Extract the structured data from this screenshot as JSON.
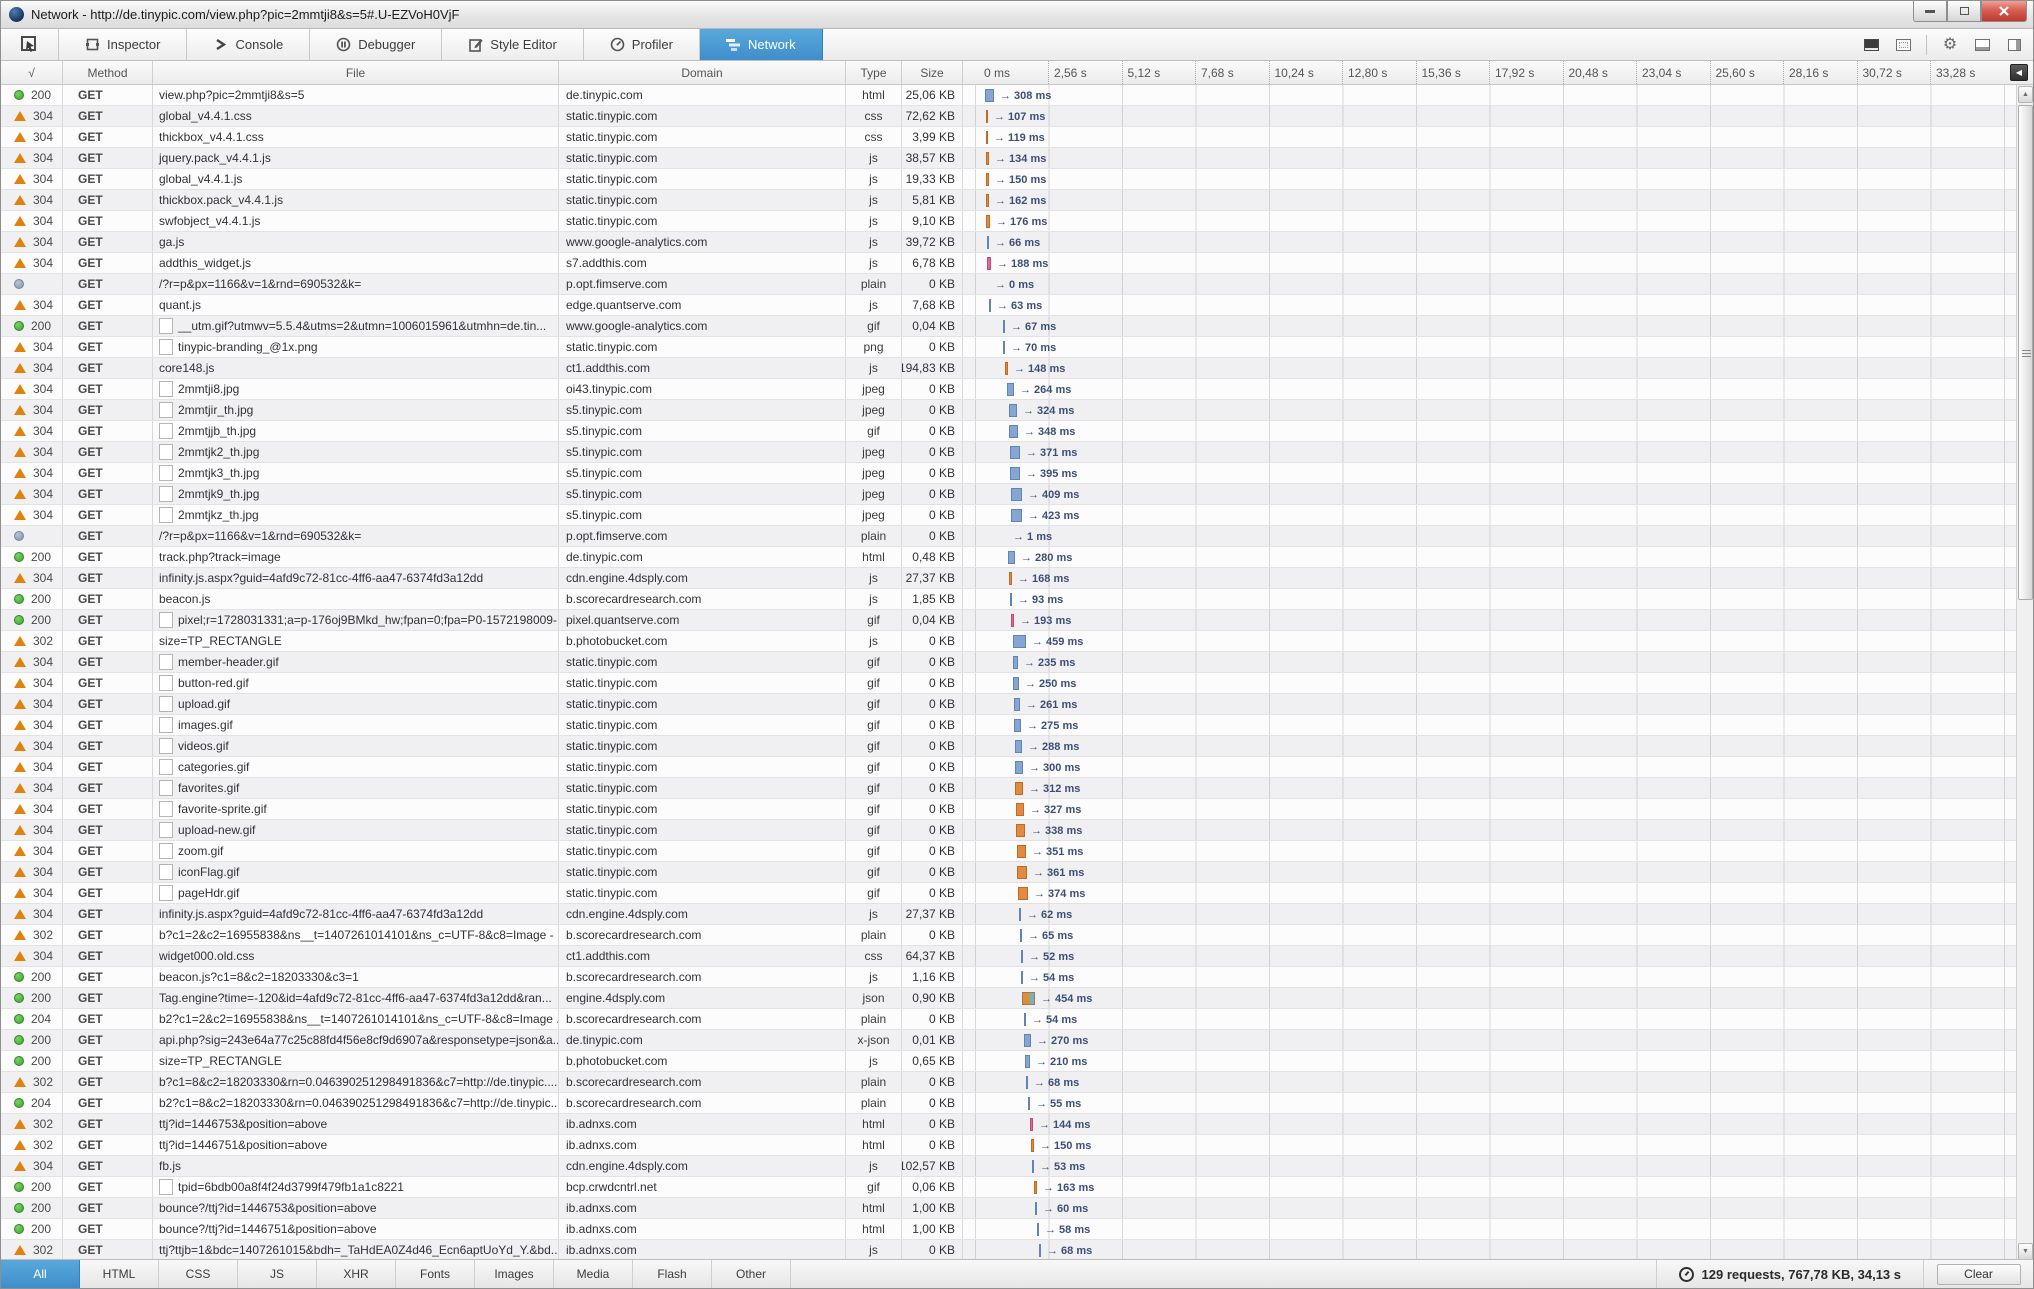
{
  "window": {
    "title": "Network - http://de.tinypic.com/view.php?pic=2mmtji8&s=5#.U-EZVoH0VjF",
    "controls": {
      "minimize": "–",
      "maximize": "",
      "close": "x"
    }
  },
  "toolbar": {
    "tabs": [
      {
        "label": "Inspector",
        "icon": "inspector-icon",
        "active": false
      },
      {
        "label": "Console",
        "icon": "console-icon",
        "active": false
      },
      {
        "label": "Debugger",
        "icon": "debugger-icon",
        "active": false
      },
      {
        "label": "Style Editor",
        "icon": "style-editor-icon",
        "active": false
      },
      {
        "label": "Profiler",
        "icon": "profiler-icon",
        "active": false
      },
      {
        "label": "Network",
        "icon": "network-icon",
        "active": true
      }
    ],
    "accent_color": "#459fd6"
  },
  "table": {
    "columns": [
      "√",
      "Method",
      "File",
      "Domain",
      "Type",
      "Size"
    ],
    "timeline_ticks": [
      "0 ms",
      "2,56 s",
      "5,12 s",
      "7,68 s",
      "10,24 s",
      "12,80 s",
      "15,36 s",
      "17,92 s",
      "20,48 s",
      "23,04 s",
      "25,60 s",
      "28,16 s",
      "30,72 s",
      "33,28 s"
    ],
    "tick_spacing_px": 73.5,
    "row_fields": [
      "status",
      "status_icon",
      "has_thumbnail",
      "file",
      "domain",
      "type",
      "size",
      "time_label",
      "bar_offset_px",
      "bar_width_px",
      "bar_color"
    ],
    "rows": [
      [
        "200",
        "green",
        false,
        "view.php?pic=2mmtji8&s=5",
        "de.tinypic.com",
        "html",
        "25,06 KB",
        "→ 308 ms",
        22,
        9,
        "blue"
      ],
      [
        "304",
        "orange",
        false,
        "global_v4.4.1.css",
        "static.tinypic.com",
        "css",
        "72,62 KB",
        "→ 107 ms",
        23,
        2,
        "orange"
      ],
      [
        "304",
        "orange",
        false,
        "thickbox_v4.4.1.css",
        "static.tinypic.com",
        "css",
        "3,99 KB",
        "→ 119 ms",
        23,
        2,
        "orange"
      ],
      [
        "304",
        "orange",
        false,
        "jquery.pack_v4.4.1.js",
        "static.tinypic.com",
        "js",
        "38,57 KB",
        "→ 134 ms",
        23,
        3,
        "orange"
      ],
      [
        "304",
        "orange",
        false,
        "global_v4.4.1.js",
        "static.tinypic.com",
        "js",
        "19,33 KB",
        "→ 150 ms",
        23,
        3,
        "orange"
      ],
      [
        "304",
        "orange",
        false,
        "thickbox.pack_v4.4.1.js",
        "static.tinypic.com",
        "js",
        "5,81 KB",
        "→ 162 ms",
        23,
        3,
        "orange"
      ],
      [
        "304",
        "orange",
        false,
        "swfobject_v4.4.1.js",
        "static.tinypic.com",
        "js",
        "9,10 KB",
        "→ 176 ms",
        23,
        4,
        "orange"
      ],
      [
        "304",
        "orange",
        false,
        "ga.js",
        "www.google-analytics.com",
        "js",
        "39,72 KB",
        "→ 66 ms",
        24,
        2,
        "blue"
      ],
      [
        "304",
        "orange",
        false,
        "addthis_widget.js",
        "s7.addthis.com",
        "js",
        "6,78 KB",
        "→ 188 ms",
        24,
        4,
        "pink"
      ],
      [
        "",
        "gray",
        false,
        "/?r=p&px=1166&v=1&rnd=690532&k=",
        "p.opt.fimserve.com",
        "plain",
        "0 KB",
        "→ 0 ms",
        26,
        0,
        "none"
      ],
      [
        "304",
        "orange",
        false,
        "quant.js",
        "edge.quantserve.com",
        "js",
        "7,68 KB",
        "→ 63 ms",
        26,
        2,
        "blue"
      ],
      [
        "200",
        "green",
        true,
        "__utm.gif?utmwv=5.5.4&utms=2&utmn=1006015961&utmhn=de.tin...",
        "www.google-analytics.com",
        "gif",
        "0,04 KB",
        "→ 67 ms",
        40,
        2,
        "blue"
      ],
      [
        "304",
        "orange",
        true,
        "tinypic-branding_@1x.png",
        "static.tinypic.com",
        "png",
        "0 KB",
        "→ 70 ms",
        40,
        2,
        "blue"
      ],
      [
        "304",
        "orange",
        false,
        "core148.js",
        "ct1.addthis.com",
        "js",
        "194,83 KB",
        "→ 148 ms",
        42,
        3,
        "orange"
      ],
      [
        "304",
        "orange",
        true,
        "2mmtji8.jpg",
        "oi43.tinypic.com",
        "jpeg",
        "0 KB",
        "→ 264 ms",
        44,
        7,
        "blue"
      ],
      [
        "304",
        "orange",
        true,
        "2mmtjir_th.jpg",
        "s5.tinypic.com",
        "jpeg",
        "0 KB",
        "→ 324 ms",
        46,
        8,
        "blue"
      ],
      [
        "304",
        "orange",
        true,
        "2mmtjjb_th.jpg",
        "s5.tinypic.com",
        "gif",
        "0 KB",
        "→ 348 ms",
        46,
        9,
        "blue"
      ],
      [
        "304",
        "orange",
        true,
        "2mmtjk2_th.jpg",
        "s5.tinypic.com",
        "jpeg",
        "0 KB",
        "→ 371 ms",
        47,
        10,
        "blue"
      ],
      [
        "304",
        "orange",
        true,
        "2mmtjk3_th.jpg",
        "s5.tinypic.com",
        "jpeg",
        "0 KB",
        "→ 395 ms",
        47,
        10,
        "blue"
      ],
      [
        "304",
        "orange",
        true,
        "2mmtjk9_th.jpg",
        "s5.tinypic.com",
        "jpeg",
        "0 KB",
        "→ 409 ms",
        48,
        11,
        "blue"
      ],
      [
        "304",
        "orange",
        true,
        "2mmtjkz_th.jpg",
        "s5.tinypic.com",
        "jpeg",
        "0 KB",
        "→ 423 ms",
        48,
        11,
        "blue"
      ],
      [
        "",
        "gray",
        false,
        "/?r=p&px=1166&v=1&rnd=690532&k=",
        "p.opt.fimserve.com",
        "plain",
        "0 KB",
        "→ 1 ms",
        44,
        0,
        "none"
      ],
      [
        "200",
        "green",
        false,
        "track.php?track=image",
        "de.tinypic.com",
        "html",
        "0,48 KB",
        "→ 280 ms",
        45,
        7,
        "blue"
      ],
      [
        "304",
        "orange",
        false,
        "infinity.js.aspx?guid=4afd9c72-81cc-4ff6-aa47-6374fd3a12dd",
        "cdn.engine.4dsply.com",
        "js",
        "27,37 KB",
        "→ 168 ms",
        46,
        3,
        "orange"
      ],
      [
        "200",
        "green",
        false,
        "beacon.js",
        "b.scorecardresearch.com",
        "js",
        "1,85 KB",
        "→ 93 ms",
        47,
        2,
        "blue"
      ],
      [
        "200",
        "green",
        true,
        "pixel;r=1728031331;a=p-176oj9BMkd_hw;fpan=0;fpa=P0-1572198009-...",
        "pixel.quantserve.com",
        "gif",
        "0,04 KB",
        "→ 193 ms",
        48,
        3,
        "pink"
      ],
      [
        "302",
        "orange",
        false,
        "size=TP_RECTANGLE",
        "b.photobucket.com",
        "js",
        "0 KB",
        "→ 459 ms",
        50,
        13,
        "blue"
      ],
      [
        "304",
        "orange",
        true,
        "member-header.gif",
        "static.tinypic.com",
        "gif",
        "0 KB",
        "→ 235 ms",
        50,
        5,
        "blue"
      ],
      [
        "304",
        "orange",
        true,
        "button-red.gif",
        "static.tinypic.com",
        "gif",
        "0 KB",
        "→ 250 ms",
        50,
        6,
        "blue"
      ],
      [
        "304",
        "orange",
        true,
        "upload.gif",
        "static.tinypic.com",
        "gif",
        "0 KB",
        "→ 261 ms",
        51,
        6,
        "blue"
      ],
      [
        "304",
        "orange",
        true,
        "images.gif",
        "static.tinypic.com",
        "gif",
        "0 KB",
        "→ 275 ms",
        51,
        7,
        "blue"
      ],
      [
        "304",
        "orange",
        true,
        "videos.gif",
        "static.tinypic.com",
        "gif",
        "0 KB",
        "→ 288 ms",
        52,
        7,
        "blue"
      ],
      [
        "304",
        "orange",
        true,
        "categories.gif",
        "static.tinypic.com",
        "gif",
        "0 KB",
        "→ 300 ms",
        52,
        8,
        "blue"
      ],
      [
        "304",
        "orange",
        true,
        "favorites.gif",
        "static.tinypic.com",
        "gif",
        "0 KB",
        "→ 312 ms",
        52,
        8,
        "orange"
      ],
      [
        "304",
        "orange",
        true,
        "favorite-sprite.gif",
        "static.tinypic.com",
        "gif",
        "0 KB",
        "→ 327 ms",
        53,
        8,
        "orange"
      ],
      [
        "304",
        "orange",
        true,
        "upload-new.gif",
        "static.tinypic.com",
        "gif",
        "0 KB",
        "→ 338 ms",
        53,
        9,
        "orange"
      ],
      [
        "304",
        "orange",
        true,
        "zoom.gif",
        "static.tinypic.com",
        "gif",
        "0 KB",
        "→ 351 ms",
        54,
        9,
        "orange"
      ],
      [
        "304",
        "orange",
        true,
        "iconFlag.gif",
        "static.tinypic.com",
        "gif",
        "0 KB",
        "→ 361 ms",
        54,
        10,
        "orange"
      ],
      [
        "304",
        "orange",
        true,
        "pageHdr.gif",
        "static.tinypic.com",
        "gif",
        "0 KB",
        "→ 374 ms",
        55,
        10,
        "orange"
      ],
      [
        "304",
        "orange",
        false,
        "infinity.js.aspx?guid=4afd9c72-81cc-4ff6-aa47-6374fd3a12dd",
        "cdn.engine.4dsply.com",
        "js",
        "27,37 KB",
        "→ 62 ms",
        56,
        2,
        "blue"
      ],
      [
        "302",
        "orange",
        false,
        "b?c1=2&c2=16955838&ns__t=1407261014101&ns_c=UTF-8&c8=Image - ...",
        "b.scorecardresearch.com",
        "plain",
        "0 KB",
        "→ 65 ms",
        57,
        2,
        "blue"
      ],
      [
        "304",
        "orange",
        false,
        "widget000.old.css",
        "ct1.addthis.com",
        "css",
        "64,37 KB",
        "→ 52 ms",
        58,
        2,
        "blue"
      ],
      [
        "200",
        "green",
        false,
        "beacon.js?c1=8&c2=18203330&c3=1",
        "b.scorecardresearch.com",
        "js",
        "1,16 KB",
        "→ 54 ms",
        58,
        2,
        "blue"
      ],
      [
        "200",
        "green",
        false,
        "Tag.engine?time=-120&id=4afd9c72-81cc-4ff6-aa47-6374fd3a12dd&ran...",
        "engine.4dsply.com",
        "json",
        "0,90 KB",
        "→ 454 ms",
        59,
        13,
        "multi"
      ],
      [
        "204",
        "green",
        false,
        "b2?c1=2&c2=16955838&ns__t=1407261014101&ns_c=UTF-8&c8=Image ...",
        "b.scorecardresearch.com",
        "plain",
        "0 KB",
        "→ 54 ms",
        61,
        2,
        "blue"
      ],
      [
        "200",
        "green",
        false,
        "api.php?sig=243e64a77c25c88fd4f56e8cf9d6907a&responsetype=json&a...",
        "de.tinypic.com",
        "x-json",
        "0,01 KB",
        "→ 270 ms",
        61,
        7,
        "blue"
      ],
      [
        "200",
        "green",
        false,
        "size=TP_RECTANGLE",
        "b.photobucket.com",
        "js",
        "0,65 KB",
        "→ 210 ms",
        62,
        5,
        "blue"
      ],
      [
        "302",
        "orange",
        false,
        "b?c1=8&c2=18203330&rn=0.046390251298491836&c7=http://de.tinypic....",
        "b.scorecardresearch.com",
        "plain",
        "0 KB",
        "→ 68 ms",
        63,
        2,
        "blue"
      ],
      [
        "204",
        "green",
        false,
        "b2?c1=8&c2=18203330&rn=0.046390251298491836&c7=http://de.tinypic...",
        "b.scorecardresearch.com",
        "plain",
        "0 KB",
        "→ 55 ms",
        65,
        2,
        "blue"
      ],
      [
        "302",
        "orange",
        false,
        "ttj?id=1446753&position=above",
        "ib.adnxs.com",
        "html",
        "0 KB",
        "→ 144 ms",
        67,
        3,
        "pink"
      ],
      [
        "302",
        "orange",
        false,
        "ttj?id=1446751&position=above",
        "ib.adnxs.com",
        "html",
        "0 KB",
        "→ 150 ms",
        68,
        3,
        "orange"
      ],
      [
        "304",
        "orange",
        false,
        "fb.js",
        "cdn.engine.4dsply.com",
        "js",
        "102,57 KB",
        "→ 53 ms",
        69,
        2,
        "blue"
      ],
      [
        "200",
        "green",
        true,
        "tpid=6bdb00a8f4f24d3799f479fb1a1c8221",
        "bcp.crwdcntrl.net",
        "gif",
        "0,06 KB",
        "→ 163 ms",
        71,
        3,
        "orange"
      ],
      [
        "200",
        "green",
        false,
        "bounce?/ttj?id=1446753&position=above",
        "ib.adnxs.com",
        "html",
        "1,00 KB",
        "→ 60 ms",
        72,
        2,
        "blue"
      ],
      [
        "200",
        "green",
        false,
        "bounce?/ttj?id=1446751&position=above",
        "ib.adnxs.com",
        "html",
        "1,00 KB",
        "→ 58 ms",
        74,
        2,
        "blue"
      ],
      [
        "302",
        "orange",
        false,
        "ttj?ttjb=1&bdc=1407261015&bdh=_TaHdEA0Z4d46_Ecn6aptUoYd_Y.&bd...",
        "ib.adnxs.com",
        "js",
        "0 KB",
        "→ 68 ms",
        76,
        2,
        "blue"
      ]
    ]
  },
  "bottom_bar": {
    "filters": [
      "All",
      "HTML",
      "CSS",
      "JS",
      "XHR",
      "Fonts",
      "Images",
      "Media",
      "Flash",
      "Other"
    ],
    "active_filter": "All",
    "summary": "129 requests, 767,78 KB, 34,13 s",
    "clear_label": "Clear"
  },
  "colors": {
    "accent_blue": "#459fd6",
    "bar_blue": "#87a5d2",
    "bar_orange": "#e08a42",
    "bar_pink": "#dc6a96",
    "status_green": "#3fa32f",
    "status_orange_triangle": "#e2820e",
    "status_gray": "#8496ab"
  }
}
